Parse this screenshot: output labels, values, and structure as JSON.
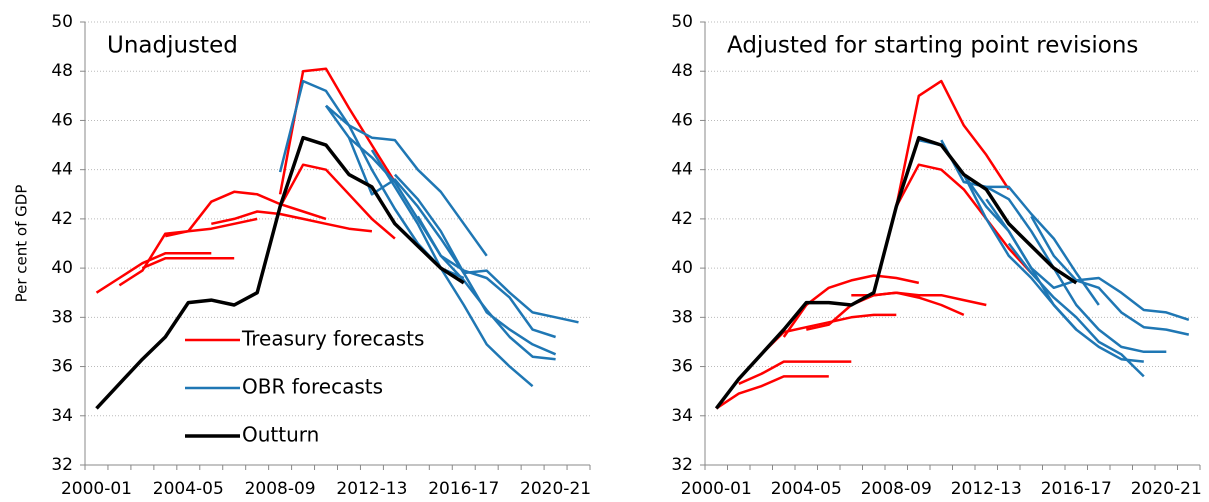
{
  "chart_data": [
    {
      "type": "line",
      "title": "Unadjusted",
      "y_label": "Per cent of GDP",
      "categories": [
        "2000-01",
        null,
        null,
        null,
        "2004-05",
        null,
        null,
        null,
        "2008-09",
        null,
        null,
        null,
        "2012-13",
        null,
        null,
        null,
        "2016-17",
        null,
        null,
        null,
        "2020-21",
        null
      ],
      "ylim": [
        32,
        50
      ],
      "yticks": [
        32,
        34,
        36,
        38,
        40,
        42,
        44,
        46,
        48,
        50
      ],
      "grid": true,
      "legend": true,
      "series": [
        {
          "name": "Treasury forecasts",
          "color": "#ff0000",
          "lines": [
            [
              39.0,
              39.6,
              40.2,
              40.6,
              40.6,
              40.6,
              null,
              null,
              null,
              null,
              null,
              null,
              null,
              null,
              null,
              null,
              null,
              null,
              null,
              null,
              null,
              null
            ],
            [
              null,
              null,
              40.0,
              40.4,
              40.4,
              40.4,
              40.4,
              null,
              null,
              null,
              null,
              null,
              null,
              null,
              null,
              null,
              null,
              null,
              null,
              null,
              null,
              null
            ],
            [
              null,
              39.3,
              39.9,
              41.4,
              41.5,
              41.6,
              41.8,
              42.0,
              null,
              null,
              null,
              null,
              null,
              null,
              null,
              null,
              null,
              null,
              null,
              null,
              null,
              null
            ],
            [
              null,
              null,
              null,
              41.3,
              41.5,
              42.7,
              43.1,
              43.0,
              42.6,
              42.3,
              42.0,
              null,
              null,
              null,
              null,
              null,
              null,
              null,
              null,
              null,
              null,
              null
            ],
            [
              null,
              null,
              null,
              null,
              null,
              41.8,
              42.0,
              42.3,
              42.2,
              42.0,
              41.8,
              41.6,
              41.5,
              null,
              null,
              null,
              null,
              null,
              null,
              null,
              null,
              null
            ],
            [
              null,
              null,
              null,
              null,
              null,
              null,
              null,
              null,
              43.0,
              48.0,
              48.1,
              46.5,
              45.0,
              43.5,
              null,
              null,
              null,
              null,
              null,
              null,
              null,
              null
            ],
            [
              null,
              null,
              null,
              null,
              null,
              null,
              null,
              null,
              42.5,
              44.2,
              44.0,
              43.0,
              42.0,
              41.2,
              null,
              null,
              null,
              null,
              null,
              null,
              null,
              null
            ]
          ]
        },
        {
          "name": "OBR forecasts",
          "color": "#1f77b4",
          "lines": [
            [
              null,
              null,
              null,
              null,
              null,
              null,
              null,
              null,
              43.9,
              47.6,
              47.2,
              45.8,
              44.0,
              42.4,
              41.0,
              40.0,
              39.6,
              null,
              null,
              null,
              null,
              null
            ],
            [
              null,
              null,
              null,
              null,
              null,
              null,
              null,
              null,
              null,
              null,
              46.6,
              45.8,
              45.3,
              45.2,
              44.0,
              43.1,
              41.8,
              40.5,
              null,
              null,
              null,
              null
            ],
            [
              null,
              null,
              null,
              null,
              null,
              null,
              null,
              null,
              null,
              null,
              46.6,
              45.3,
              43.0,
              43.6,
              42.5,
              41.2,
              39.8,
              39.9,
              39.0,
              38.2,
              38.0,
              37.8
            ],
            [
              null,
              null,
              null,
              null,
              null,
              null,
              null,
              null,
              null,
              null,
              null,
              45.3,
              44.5,
              43.5,
              42.0,
              40.5,
              39.5,
              38.3,
              37.2,
              36.4,
              36.3,
              null
            ],
            [
              null,
              null,
              null,
              null,
              null,
              null,
              null,
              null,
              null,
              null,
              null,
              null,
              44.8,
              43.3,
              41.8,
              40.0,
              38.5,
              36.9,
              36.0,
              35.2,
              null,
              null
            ],
            [
              null,
              null,
              null,
              null,
              null,
              null,
              null,
              null,
              null,
              null,
              null,
              null,
              null,
              43.8,
              42.8,
              41.5,
              39.8,
              38.2,
              37.5,
              36.9,
              36.5,
              null
            ],
            [
              null,
              null,
              null,
              null,
              null,
              null,
              null,
              null,
              null,
              null,
              null,
              null,
              null,
              null,
              42.1,
              40.5,
              39.9,
              39.6,
              38.8,
              37.5,
              37.2,
              null
            ]
          ]
        },
        {
          "name": "Outturn",
          "color": "#000000",
          "values": [
            34.3,
            35.3,
            36.3,
            37.2,
            38.6,
            38.7,
            38.5,
            39.0,
            42.5,
            45.3,
            45.0,
            43.8,
            43.3,
            41.8,
            40.9,
            40.0,
            39.4,
            null,
            null,
            null,
            null,
            null
          ]
        }
      ]
    },
    {
      "type": "line",
      "title": "Adjusted for starting point revisions",
      "categories": [
        "2000-01",
        null,
        null,
        null,
        "2004-05",
        null,
        null,
        null,
        "2008-09",
        null,
        null,
        null,
        "2012-13",
        null,
        null,
        null,
        "2016-17",
        null,
        null,
        null,
        "2020-21",
        null
      ],
      "ylim": [
        32,
        50
      ],
      "yticks": [
        32,
        34,
        36,
        38,
        40,
        42,
        44,
        46,
        48,
        50
      ],
      "grid": true,
      "legend": false,
      "series": [
        {
          "color": "#ff0000",
          "lines": [
            [
              34.3,
              34.9,
              35.2,
              35.6,
              35.6,
              35.6,
              null,
              null,
              null,
              null,
              null,
              null,
              null,
              null,
              null,
              null,
              null,
              null,
              null,
              null,
              null,
              null
            ],
            [
              null,
              35.3,
              35.7,
              36.2,
              36.2,
              36.2,
              36.2,
              null,
              null,
              null,
              null,
              null,
              null,
              null,
              null,
              null,
              null,
              null,
              null,
              null,
              null,
              null
            ],
            [
              null,
              null,
              36.5,
              37.4,
              37.6,
              37.8,
              38.0,
              38.1,
              38.1,
              null,
              null,
              null,
              null,
              null,
              null,
              null,
              null,
              null,
              null,
              null,
              null,
              null
            ],
            [
              null,
              null,
              null,
              37.2,
              38.5,
              39.2,
              39.5,
              39.7,
              39.6,
              39.4,
              null,
              null,
              null,
              null,
              null,
              null,
              null,
              null,
              null,
              null,
              null,
              null
            ],
            [
              null,
              null,
              null,
              null,
              37.5,
              37.7,
              38.5,
              38.9,
              39.0,
              38.8,
              38.5,
              38.1,
              null,
              null,
              null,
              null,
              null,
              null,
              null,
              null,
              null,
              null
            ],
            [
              null,
              null,
              null,
              null,
              null,
              null,
              38.9,
              38.9,
              39.0,
              38.9,
              38.9,
              38.7,
              38.5,
              null,
              null,
              null,
              null,
              null,
              null,
              null,
              null,
              null
            ],
            [
              null,
              null,
              null,
              null,
              null,
              null,
              null,
              null,
              42.5,
              47.0,
              47.6,
              45.8,
              44.6,
              43.2,
              null,
              null,
              null,
              null,
              null,
              null,
              null,
              null
            ],
            [
              null,
              null,
              null,
              null,
              null,
              null,
              null,
              null,
              42.5,
              44.2,
              44.0,
              43.2,
              42.0,
              40.8,
              39.8,
              null,
              null,
              null,
              null,
              null,
              null,
              null
            ]
          ]
        },
        {
          "color": "#1f77b4",
          "lines": [
            [
              null,
              null,
              null,
              null,
              null,
              null,
              null,
              null,
              null,
              45.2,
              45.0,
              43.8,
              42.0,
              40.5,
              39.6,
              38.5,
              37.5,
              null,
              null,
              null,
              null,
              null
            ],
            [
              null,
              null,
              null,
              null,
              null,
              null,
              null,
              null,
              null,
              null,
              45.2,
              43.5,
              43.3,
              43.3,
              42.2,
              41.2,
              39.8,
              38.5,
              null,
              null,
              null,
              null
            ],
            [
              null,
              null,
              null,
              null,
              null,
              null,
              null,
              null,
              null,
              null,
              null,
              43.8,
              42.5,
              41.5,
              40.0,
              39.2,
              39.5,
              39.6,
              39.0,
              38.3,
              38.2,
              37.9
            ],
            [
              null,
              null,
              null,
              null,
              null,
              null,
              null,
              null,
              null,
              null,
              null,
              null,
              42.8,
              41.5,
              40.0,
              38.5,
              37.5,
              36.8,
              36.3,
              36.2,
              null,
              null
            ],
            [
              null,
              null,
              null,
              null,
              null,
              null,
              null,
              null,
              null,
              null,
              null,
              null,
              43.3,
              42.8,
              41.5,
              40.0,
              38.5,
              37.5,
              36.8,
              36.6,
              36.6,
              null
            ],
            [
              null,
              null,
              null,
              null,
              null,
              null,
              null,
              null,
              null,
              null,
              null,
              null,
              null,
              41.0,
              39.8,
              38.8,
              38.0,
              37.0,
              36.5,
              35.6,
              null,
              null
            ],
            [
              null,
              null,
              null,
              null,
              null,
              null,
              null,
              null,
              null,
              null,
              null,
              null,
              null,
              null,
              42.1,
              40.5,
              39.5,
              39.2,
              38.2,
              37.6,
              37.5,
              37.3
            ]
          ]
        },
        {
          "color": "#000000",
          "values": [
            34.3,
            35.5,
            36.5,
            37.5,
            38.6,
            38.6,
            38.5,
            39.0,
            42.5,
            45.3,
            45.0,
            43.8,
            43.2,
            41.8,
            40.9,
            40.0,
            39.4,
            null,
            null,
            null,
            null,
            null
          ]
        }
      ]
    }
  ]
}
